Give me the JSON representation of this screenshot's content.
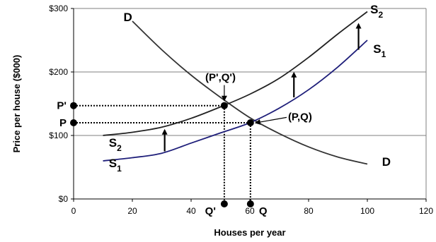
{
  "chart_data": {
    "type": "line",
    "xlabel": "Houses per year",
    "ylabel": "Price per house ($000)",
    "xlim": [
      0,
      120
    ],
    "ylim": [
      0,
      300
    ],
    "x_ticks": [
      "0",
      "20",
      "40",
      "60",
      "80",
      "100",
      "120"
    ],
    "y_ticks": [
      "$0",
      "$100",
      "$200",
      "$300"
    ],
    "grid": "horizontal",
    "series": [
      {
        "name": "D",
        "color": "#333333",
        "x": [
          20,
          30,
          40,
          50,
          60,
          70,
          80,
          90,
          100
        ],
        "y": [
          280,
          235,
          195,
          160,
          128,
          103,
          82,
          66,
          55
        ]
      },
      {
        "name": "S1",
        "color": "#1f1f7a",
        "x": [
          10,
          20,
          30,
          40,
          50,
          60,
          70,
          80,
          90,
          100
        ],
        "y": [
          60,
          65,
          72,
          88,
          104,
          120,
          143,
          172,
          208,
          250
        ]
      },
      {
        "name": "S2",
        "color": "#222222",
        "x": [
          10,
          20,
          30,
          40,
          50,
          60,
          70,
          80,
          90,
          100
        ],
        "y": [
          100,
          105,
          113,
          127,
          145,
          165,
          190,
          223,
          260,
          295
        ]
      }
    ],
    "curve_labels": {
      "d_top": {
        "text": "D",
        "x": 17,
        "y": 280
      },
      "d_bottom": {
        "text": "D",
        "x": 105,
        "y": 52
      },
      "s2_top": {
        "main": "S",
        "sub": "2",
        "x": 101,
        "y": 292
      },
      "s1_top": {
        "main": "S",
        "sub": "1",
        "x": 102,
        "y": 230
      },
      "s2_left": {
        "main": "S",
        "sub": "2",
        "x": 12,
        "y": 82
      },
      "s1_left": {
        "main": "S",
        "sub": "1",
        "x": 12,
        "y": 50
      }
    },
    "equilibria": [
      {
        "label": "(P',Q')",
        "x": 51.3,
        "y": 147,
        "label_x": 50,
        "label_y": 186
      },
      {
        "label": "(P,Q)",
        "x": 60.2,
        "y": 120,
        "label_x": 73,
        "label_y": 124
      }
    ],
    "axis_markers": {
      "p_prime": {
        "text": "P'",
        "value": 147
      },
      "p": {
        "text": "P",
        "value": 120
      },
      "q_prime": {
        "text": "Q'",
        "value": 51.3
      },
      "q": {
        "text": "Q",
        "value": 60.2
      }
    },
    "shift_arrows": [
      {
        "x": 31,
        "from": 75,
        "to": 108
      },
      {
        "x": 75,
        "from": 160,
        "to": 198
      },
      {
        "x": 97,
        "from": 235,
        "to": 275
      }
    ]
  }
}
